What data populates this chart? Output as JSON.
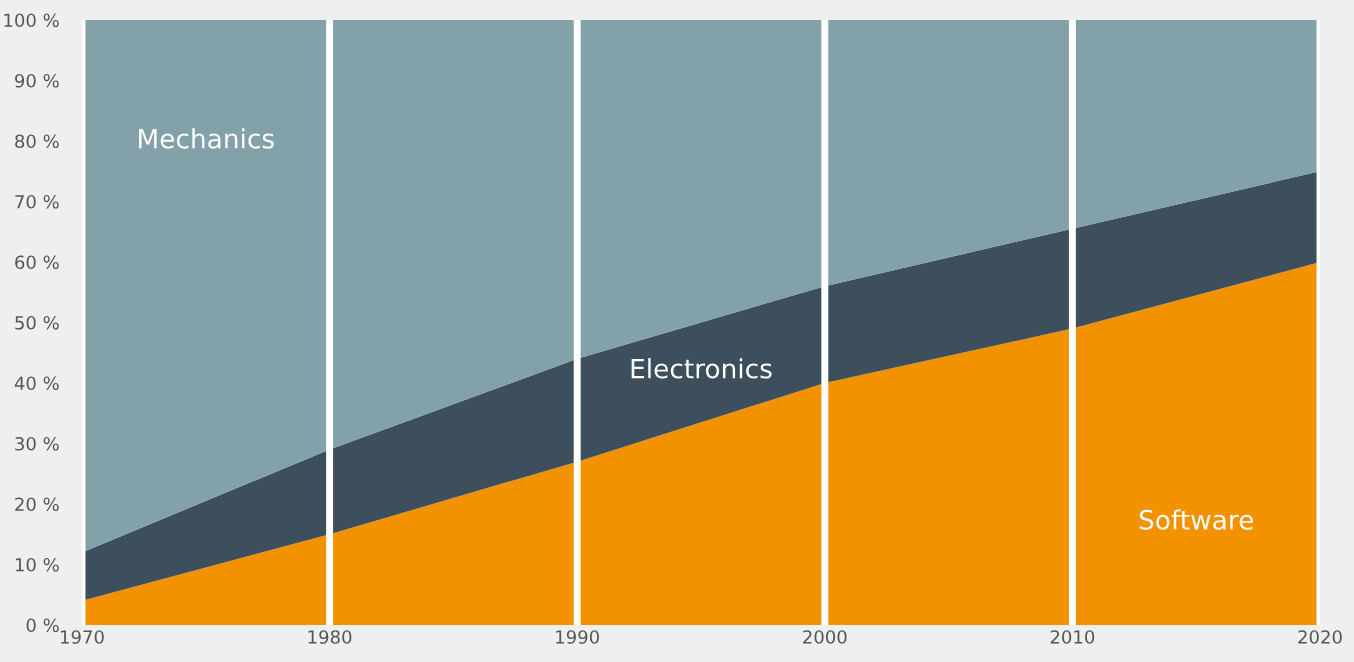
{
  "chart_data": {
    "type": "area",
    "stacked": true,
    "x": [
      1970,
      1980,
      1990,
      2000,
      2010,
      2020
    ],
    "series": [
      {
        "name": "Software",
        "color": "#f39200",
        "values": [
          4,
          15,
          27,
          40,
          49,
          60
        ]
      },
      {
        "name": "Electronics",
        "color": "#3d4f5c",
        "values": [
          8,
          14,
          17,
          16,
          16.5,
          15
        ]
      },
      {
        "name": "Mechanics",
        "color": "#82a1a8",
        "values": [
          88,
          71,
          56,
          44,
          34.5,
          25
        ]
      }
    ],
    "xlim": [
      1970,
      2020
    ],
    "xticks": [
      1970,
      1980,
      1990,
      2000,
      2010,
      2020
    ],
    "ylim": [
      0,
      100
    ],
    "yticks": [
      {
        "value": 0,
        "label": "0 %"
      },
      {
        "value": 10,
        "label": "10 %"
      },
      {
        "value": 20,
        "label": "20 %"
      },
      {
        "value": 30,
        "label": "30 %"
      },
      {
        "value": 40,
        "label": "40 %"
      },
      {
        "value": 50,
        "label": "50 %"
      },
      {
        "value": 60,
        "label": "60 %"
      },
      {
        "value": 70,
        "label": "70 %"
      },
      {
        "value": 80,
        "label": "80 %"
      },
      {
        "value": 90,
        "label": "90 %"
      },
      {
        "value": 100,
        "label": "100 %"
      }
    ],
    "grid": "x",
    "legend": false
  }
}
